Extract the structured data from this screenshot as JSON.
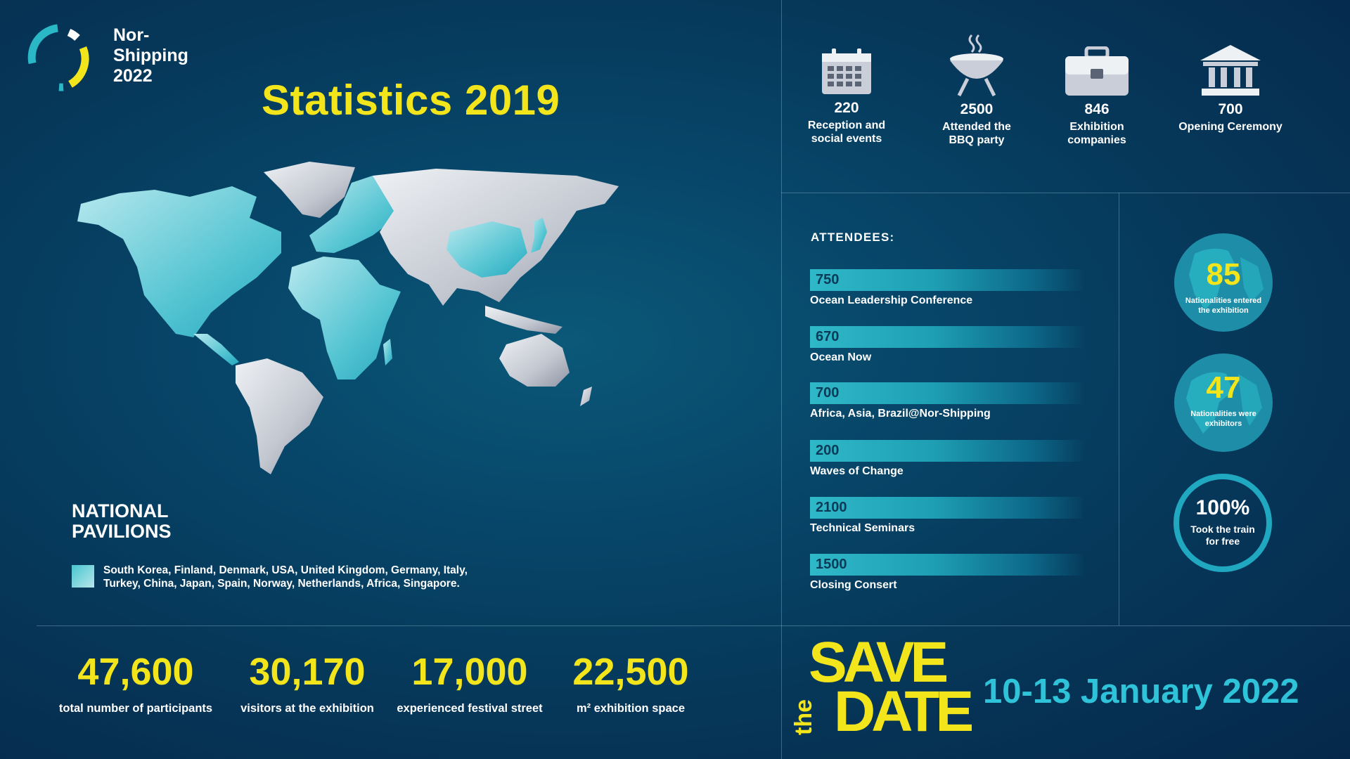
{
  "logo": {
    "line1": "Nor-",
    "line2": "Shipping",
    "line3": "2022"
  },
  "title": "Statistics 2019",
  "top_stats": [
    {
      "icon": "calendar-icon",
      "value": "220",
      "label_line1": "Reception and",
      "label_line2": "social events"
    },
    {
      "icon": "bbq-grill-icon",
      "value": "2500",
      "label_line1": "Attended the",
      "label_line2": "BBQ party"
    },
    {
      "icon": "briefcase-icon",
      "value": "846",
      "label_line1": "Exhibition",
      "label_line2": "companies"
    },
    {
      "icon": "building-icon",
      "value": "700",
      "label_line1": "Opening Ceremony",
      "label_line2": ""
    }
  ],
  "attendees": {
    "title": "ATTENDEES:",
    "items": [
      {
        "value": "750",
        "label": "Ocean Leadership Conference"
      },
      {
        "value": "670",
        "label": "Ocean Now"
      },
      {
        "value": "700",
        "label": "Africa, Asia, Brazil@Nor-Shipping"
      },
      {
        "value": "200",
        "label": "Waves of Change"
      },
      {
        "value": "2100",
        "label": "Technical Seminars"
      },
      {
        "value": "1500",
        "label": "Closing Consert"
      }
    ]
  },
  "globes": [
    {
      "value": "85",
      "label_line1": "Nationalities entered",
      "label_line2": "the exhibition"
    },
    {
      "value": "47",
      "label_line1": "Nationalities were",
      "label_line2": "exhibitors"
    }
  ],
  "train": {
    "value": "100%",
    "label_line1": "Took the train",
    "label_line2": "for free"
  },
  "pavilions": {
    "title_line1": "NATIONAL",
    "title_line2": "PAVILIONS",
    "list_line1": "South Korea, Finland, Denmark, USA, United Kingdom, Germany, Italy,",
    "list_line2": "Turkey, China, Japan, Spain, Norway, Netherlands, Africa, Singapore."
  },
  "bottom_stats": [
    {
      "value": "47,600",
      "label": "total number of participants"
    },
    {
      "value": "30,170",
      "label": "visitors at the exhibition"
    },
    {
      "value": "17,000",
      "label": "experienced festival street"
    },
    {
      "value": "22,500",
      "label": "m² exhibition space"
    }
  ],
  "save_the_date": {
    "save": "SAVE",
    "the": "the",
    "date": "DATE",
    "event_date": "10-13 January 2022"
  },
  "colors": {
    "accent_yellow": "#f3e51c",
    "accent_cyan": "#2ec3d8",
    "background": "#06385a"
  }
}
